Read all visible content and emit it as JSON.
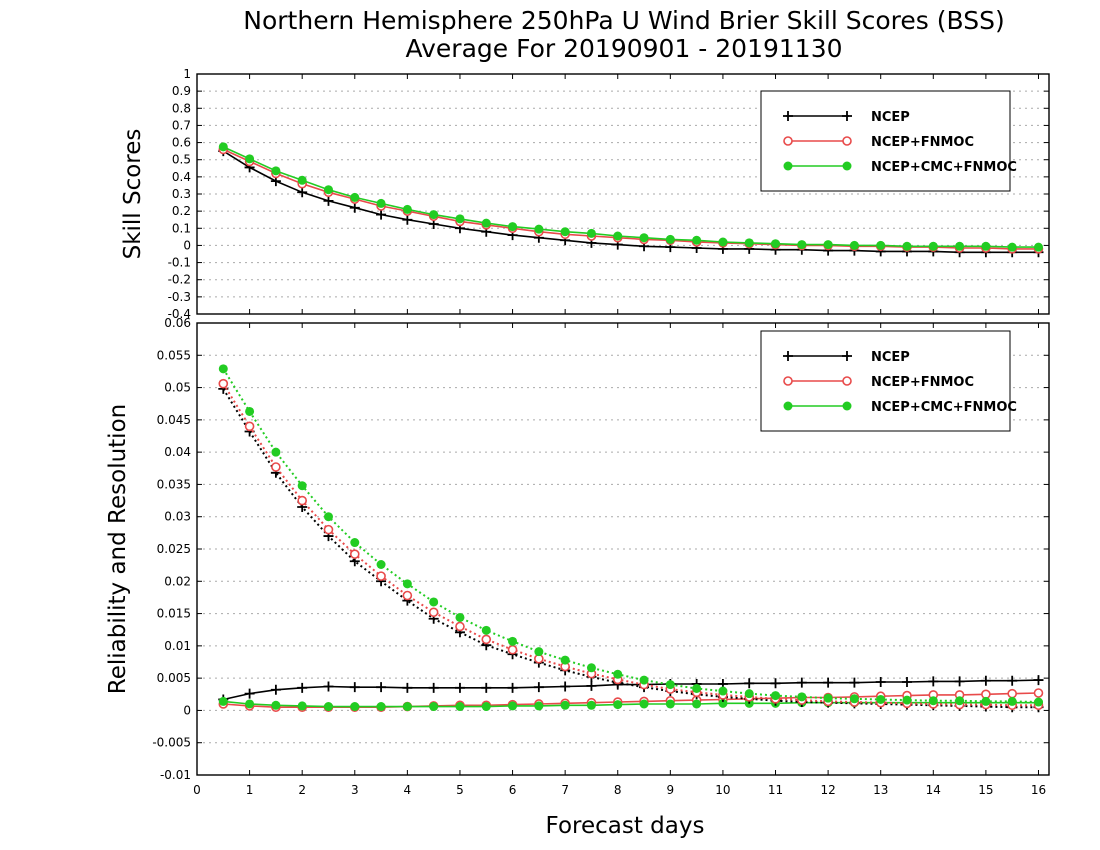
{
  "title": {
    "line1": "Northern Hemisphere 250hPa U Wind Brier Skill Scores (BSS)",
    "line2": "Average For 20190901 - 20191130"
  },
  "colors": {
    "ncep": "#000000",
    "fnmoc": "#e84a4a",
    "cmc": "#22cc22",
    "grid": "#aaaaaa"
  },
  "chart_data": [
    {
      "type": "line",
      "ylabel": "Skill Scores",
      "ylim": [
        -0.4,
        1
      ],
      "yticks": [
        "-0.4",
        "-0.3",
        "-0.2",
        "-0.1",
        "0",
        "0.1",
        "0.2",
        "0.3",
        "0.4",
        "0.5",
        "0.6",
        "0.7",
        "0.8",
        "0.9",
        "1"
      ],
      "xlim": [
        0,
        16.2
      ],
      "grid": true,
      "legend": "top-right",
      "x": [
        0.5,
        1,
        1.5,
        2,
        2.5,
        3,
        3.5,
        4,
        4.5,
        5,
        5.5,
        6,
        6.5,
        7,
        7.5,
        8,
        8.5,
        9,
        9.5,
        10,
        10.5,
        11,
        11.5,
        12,
        12.5,
        13,
        13.5,
        14,
        14.5,
        15,
        15.5,
        16
      ],
      "series": [
        {
          "name": "NCEP",
          "marker": "plus",
          "values": [
            0.55,
            0.455,
            0.375,
            0.31,
            0.26,
            0.22,
            0.18,
            0.15,
            0.125,
            0.1,
            0.08,
            0.06,
            0.045,
            0.03,
            0.015,
            0.005,
            -0.005,
            -0.01,
            -0.015,
            -0.02,
            -0.02,
            -0.025,
            -0.025,
            -0.03,
            -0.03,
            -0.035,
            -0.035,
            -0.035,
            -0.04,
            -0.04,
            -0.04,
            -0.04
          ]
        },
        {
          "name": "NCEP+FNMOC",
          "marker": "open-circle",
          "values": [
            0.56,
            0.49,
            0.42,
            0.36,
            0.31,
            0.27,
            0.23,
            0.2,
            0.17,
            0.14,
            0.12,
            0.1,
            0.08,
            0.065,
            0.055,
            0.045,
            0.035,
            0.03,
            0.02,
            0.015,
            0.01,
            0.005,
            0.0,
            0.0,
            -0.005,
            -0.005,
            -0.01,
            -0.01,
            -0.015,
            -0.015,
            -0.02,
            -0.02
          ]
        },
        {
          "name": "NCEP+CMC+FNMOC",
          "marker": "filled-circle",
          "values": [
            0.575,
            0.505,
            0.435,
            0.38,
            0.325,
            0.28,
            0.245,
            0.21,
            0.18,
            0.155,
            0.13,
            0.11,
            0.095,
            0.08,
            0.07,
            0.055,
            0.045,
            0.035,
            0.03,
            0.02,
            0.015,
            0.01,
            0.005,
            0.005,
            0.0,
            0.0,
            -0.005,
            -0.005,
            -0.005,
            -0.005,
            -0.01,
            -0.01
          ]
        }
      ]
    },
    {
      "type": "line",
      "ylabel": "Reliability and Resolution",
      "xlabel": "Forecast days",
      "ylim": [
        -0.01,
        0.06
      ],
      "yticks": [
        "-0.01",
        "-0.005",
        "0",
        "0.005",
        "0.01",
        "0.015",
        "0.02",
        "0.025",
        "0.03",
        "0.035",
        "0.04",
        "0.045",
        "0.05",
        "0.055",
        "0.06"
      ],
      "xlim": [
        0,
        16.2
      ],
      "xticks": [
        "0",
        "1",
        "2",
        "3",
        "4",
        "5",
        "6",
        "7",
        "8",
        "9",
        "10",
        "11",
        "12",
        "13",
        "14",
        "15",
        "16"
      ],
      "grid": true,
      "legend": "top-right",
      "x": [
        0.5,
        1,
        1.5,
        2,
        2.5,
        3,
        3.5,
        4,
        4.5,
        5,
        5.5,
        6,
        6.5,
        7,
        7.5,
        8,
        8.5,
        9,
        9.5,
        10,
        10.5,
        11,
        11.5,
        12,
        12.5,
        13,
        13.5,
        14,
        14.5,
        15,
        15.5,
        16
      ],
      "series": [
        {
          "name": "NCEP",
          "role": "reliability",
          "marker": "plus",
          "values": [
            0.0017,
            0.0026,
            0.0032,
            0.0035,
            0.0037,
            0.0036,
            0.0036,
            0.0035,
            0.0035,
            0.0035,
            0.0035,
            0.0035,
            0.0036,
            0.0037,
            0.0038,
            0.004,
            0.004,
            0.0041,
            0.0041,
            0.0041,
            0.0042,
            0.0042,
            0.0043,
            0.0043,
            0.0043,
            0.0044,
            0.0044,
            0.0045,
            0.0045,
            0.0046,
            0.0046,
            0.0047
          ]
        },
        {
          "name": "NCEP+FNMOC",
          "role": "reliability",
          "marker": "open-circle",
          "values": [
            0.001,
            0.0007,
            0.0005,
            0.0005,
            0.0005,
            0.0005,
            0.0005,
            0.0006,
            0.0007,
            0.0008,
            0.0008,
            0.0009,
            0.001,
            0.0011,
            0.0012,
            0.0013,
            0.0014,
            0.0015,
            0.0016,
            0.0017,
            0.0018,
            0.0019,
            0.002,
            0.002,
            0.0021,
            0.0022,
            0.0023,
            0.0024,
            0.0024,
            0.0025,
            0.0026,
            0.0027
          ]
        },
        {
          "name": "NCEP+CMC+FNMOC",
          "role": "reliability",
          "marker": "filled-circle",
          "values": [
            0.0014,
            0.001,
            0.0008,
            0.0007,
            0.0006,
            0.0006,
            0.0006,
            0.0006,
            0.0006,
            0.0006,
            0.0006,
            0.0007,
            0.0007,
            0.0008,
            0.0008,
            0.0009,
            0.001,
            0.001,
            0.001,
            0.0011,
            0.0011,
            0.0011,
            0.0012,
            0.0012,
            0.0012,
            0.0012,
            0.0012,
            0.0012,
            0.0012,
            0.0012,
            0.0012,
            0.0012
          ]
        },
        {
          "name": "NCEP",
          "role": "resolution",
          "marker": "plus",
          "values": [
            0.0498,
            0.0432,
            0.0368,
            0.0315,
            0.027,
            0.0231,
            0.02,
            0.017,
            0.0142,
            0.0121,
            0.0101,
            0.0087,
            0.0074,
            0.0062,
            0.0052,
            0.0043,
            0.0036,
            0.003,
            0.0025,
            0.0021,
            0.0018,
            0.0015,
            0.0013,
            0.0012,
            0.0011,
            0.001,
            0.0009,
            0.0008,
            0.0007,
            0.0006,
            0.0005,
            0.0005
          ]
        },
        {
          "name": "NCEP+FNMOC",
          "role": "resolution",
          "marker": "open-circle",
          "values": [
            0.0506,
            0.044,
            0.0377,
            0.0325,
            0.028,
            0.0242,
            0.0208,
            0.0178,
            0.0152,
            0.013,
            0.011,
            0.0094,
            0.008,
            0.0068,
            0.0057,
            0.0048,
            0.004,
            0.0033,
            0.0028,
            0.0024,
            0.0021,
            0.0018,
            0.0016,
            0.0014,
            0.0013,
            0.0012,
            0.0011,
            0.001,
            0.0009,
            0.0009,
            0.0008,
            0.0008
          ]
        },
        {
          "name": "NCEP+CMC+FNMOC",
          "role": "resolution",
          "marker": "filled-circle",
          "values": [
            0.0529,
            0.0463,
            0.04,
            0.0348,
            0.03,
            0.026,
            0.0226,
            0.0196,
            0.0168,
            0.0144,
            0.0124,
            0.0107,
            0.0091,
            0.0078,
            0.0066,
            0.0056,
            0.0047,
            0.004,
            0.0034,
            0.003,
            0.0026,
            0.0023,
            0.0021,
            0.0019,
            0.0018,
            0.0017,
            0.0016,
            0.0015,
            0.0015,
            0.0014,
            0.0014,
            0.0013
          ]
        }
      ]
    }
  ]
}
